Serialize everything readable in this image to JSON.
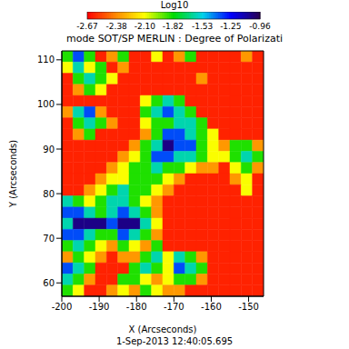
{
  "chart_data": {
    "type": "heatmap",
    "title": "mode SOT/SP MERLIN : Degree of Polarizati",
    "x_label": "X (Arcseconds)",
    "y_label": "Y (Arcseconds)",
    "annotation": "1-Sep-2013 12:40:05.695",
    "xlim": [
      -200,
      -146
    ],
    "ylim": [
      57,
      112
    ],
    "xticks": [
      -200,
      -190,
      -180,
      -170,
      -160,
      -150
    ],
    "yticks": [
      60,
      70,
      80,
      90,
      100,
      110
    ],
    "grid": false,
    "colorbar": {
      "label": "Log10",
      "range": [
        -2.67,
        -0.96
      ],
      "ticks": [
        -2.67,
        -2.38,
        {
          "value": -2.1,
          "label": "-2.10"
        },
        -1.82,
        -1.53,
        -1.25,
        -0.96
      ]
    },
    "x_edges": [
      -200,
      -197,
      -194,
      -191,
      -188,
      -185,
      -182,
      -179,
      -176,
      -173,
      -170,
      -167,
      -164,
      -161,
      -158,
      -155,
      -152,
      -149,
      -146
    ],
    "y_edges": [
      112,
      109.5,
      107,
      104.5,
      102,
      99.5,
      97,
      94.5,
      92,
      89.5,
      87,
      84.5,
      82,
      79.5,
      77,
      74.5,
      72,
      69.5,
      67,
      64.5,
      62,
      59.5,
      57
    ],
    "z": [
      [
        -1.85,
        -1.35,
        -1.85,
        -2.6,
        -2.35,
        -1.85,
        -2.6,
        -2.6,
        -2.1,
        -2.6,
        -2.35,
        -1.85,
        -2.6,
        -2.6,
        -2.6,
        -2.6,
        -2.35,
        -2.6
      ],
      [
        -2.1,
        -1.6,
        -2.1,
        -1.85,
        -2.6,
        -2.35,
        -2.6,
        -2.6,
        -2.6,
        -2.6,
        -2.6,
        -2.6,
        -2.6,
        -2.6,
        -2.6,
        -2.6,
        -2.6,
        -2.6
      ],
      [
        -2.6,
        -1.85,
        -1.6,
        -1.85,
        -2.1,
        -2.6,
        -2.6,
        -2.6,
        -2.6,
        -2.6,
        -2.6,
        -2.6,
        -2.35,
        -2.6,
        -2.6,
        -2.6,
        -2.6,
        -2.6
      ],
      [
        -2.6,
        -2.35,
        -1.85,
        -2.1,
        -2.6,
        -2.6,
        -2.6,
        -2.6,
        -2.6,
        -2.6,
        -2.6,
        -2.6,
        -2.6,
        -2.6,
        -2.6,
        -2.6,
        -2.6,
        -2.6
      ],
      [
        -2.6,
        -2.6,
        -2.6,
        -2.6,
        -2.6,
        -2.6,
        -2.6,
        -2.1,
        -1.85,
        -1.6,
        -1.85,
        -2.6,
        -2.6,
        -2.6,
        -2.6,
        -2.6,
        -2.6,
        -2.6
      ],
      [
        -2.35,
        -1.6,
        -1.35,
        -2.35,
        -2.6,
        -2.6,
        -2.6,
        -1.85,
        -1.6,
        -1.35,
        -1.6,
        -1.85,
        -2.6,
        -2.6,
        -2.6,
        -2.6,
        -2.6,
        -2.6
      ],
      [
        -2.6,
        -1.85,
        -1.6,
        -1.85,
        -2.35,
        -2.6,
        -2.6,
        -2.1,
        -1.85,
        -1.85,
        -1.6,
        -1.6,
        -1.85,
        -2.6,
        -2.6,
        -2.6,
        -2.6,
        -2.6
      ],
      [
        -2.6,
        -2.35,
        -1.85,
        -2.6,
        -2.6,
        -2.6,
        -2.6,
        -2.35,
        -1.85,
        -1.35,
        -1.35,
        -1.6,
        -1.85,
        -2.1,
        -2.6,
        -2.6,
        -2.6,
        -2.6
      ],
      [
        -2.6,
        -2.6,
        -2.6,
        -2.6,
        -2.6,
        -2.6,
        -2.35,
        -1.85,
        -1.6,
        -1.05,
        -1.35,
        -1.35,
        -1.85,
        -2.1,
        -2.35,
        -1.85,
        -1.85,
        -2.35
      ],
      [
        -2.6,
        -2.6,
        -2.6,
        -2.6,
        -2.6,
        -2.35,
        -2.1,
        -1.85,
        -1.35,
        -1.35,
        -1.6,
        -1.6,
        -1.85,
        -2.1,
        -2.1,
        -1.85,
        -1.6,
        -1.85
      ],
      [
        -2.6,
        -2.6,
        -2.6,
        -2.6,
        -2.35,
        -2.1,
        -1.85,
        -1.85,
        -1.6,
        -1.85,
        -1.85,
        -2.1,
        -2.35,
        -2.35,
        -2.6,
        -2.1,
        -1.85,
        -2.35
      ],
      [
        -2.6,
        -2.6,
        -2.6,
        -2.35,
        -2.1,
        -2.1,
        -1.85,
        -1.85,
        -1.85,
        -2.1,
        -2.35,
        -2.6,
        -2.6,
        -2.6,
        -2.6,
        -2.35,
        -2.1,
        -2.6
      ],
      [
        -2.6,
        -2.6,
        -2.35,
        -2.1,
        -1.85,
        -1.6,
        -1.85,
        -1.85,
        -2.1,
        -2.35,
        -2.6,
        -2.6,
        -2.6,
        -2.6,
        -2.6,
        -2.6,
        -2.1,
        -2.6
      ],
      [
        -1.6,
        -1.85,
        -2.1,
        -1.85,
        -1.6,
        -1.6,
        -1.85,
        -2.1,
        -2.35,
        -2.6,
        -2.6,
        -2.6,
        -2.6,
        -2.6,
        -2.6,
        -2.6,
        -2.6,
        -2.6
      ],
      [
        -1.35,
        -1.35,
        -1.6,
        -1.85,
        -1.6,
        -1.35,
        -1.6,
        -1.85,
        -2.35,
        -2.6,
        -2.6,
        -2.6,
        -2.6,
        -2.6,
        -2.6,
        -2.6,
        -2.6,
        -2.6
      ],
      [
        -1.6,
        -1.05,
        -1.05,
        -1.05,
        -1.35,
        -1.05,
        -1.05,
        -1.6,
        -2.1,
        -2.6,
        -2.6,
        -2.6,
        -2.6,
        -2.6,
        -2.6,
        -2.6,
        -2.6,
        -2.6
      ],
      [
        -1.35,
        -1.35,
        -1.6,
        -1.85,
        -1.85,
        -1.35,
        -1.6,
        -1.85,
        -2.35,
        -2.6,
        -2.6,
        -2.6,
        -2.6,
        -2.6,
        -2.6,
        -2.6,
        -2.6,
        -2.6
      ],
      [
        -1.85,
        -1.6,
        -1.85,
        -2.1,
        -2.35,
        -1.85,
        -2.1,
        -2.35,
        -1.85,
        -2.6,
        -2.6,
        -2.6,
        -2.6,
        -2.6,
        -2.6,
        -2.6,
        -2.6,
        -2.6
      ],
      [
        -2.35,
        -1.85,
        -2.1,
        -2.35,
        -2.6,
        -2.35,
        -2.35,
        -1.85,
        -1.6,
        -2.1,
        -1.6,
        -1.85,
        -2.35,
        -2.6,
        -2.6,
        -2.6,
        -2.6,
        -2.6
      ],
      [
        -1.35,
        -1.6,
        -1.85,
        -2.6,
        -2.6,
        -2.6,
        -1.85,
        -1.6,
        -1.85,
        -2.1,
        -1.35,
        -1.6,
        -1.85,
        -2.6,
        -2.6,
        -2.6,
        -2.6,
        -2.6
      ],
      [
        -1.6,
        -1.85,
        -2.35,
        -2.6,
        -2.6,
        -1.85,
        -1.85,
        -2.1,
        -2.35,
        -2.1,
        -1.85,
        -1.85,
        -2.35,
        -2.6,
        -2.6,
        -2.6,
        -2.6,
        -2.6
      ],
      [
        -1.85,
        -2.1,
        -2.6,
        -2.6,
        -2.35,
        -2.1,
        -2.35,
        -1.85,
        -2.1,
        -2.35,
        -2.35,
        -2.6,
        -2.6,
        -2.6,
        -2.6,
        -2.6,
        -2.6,
        -2.6
      ]
    ]
  }
}
